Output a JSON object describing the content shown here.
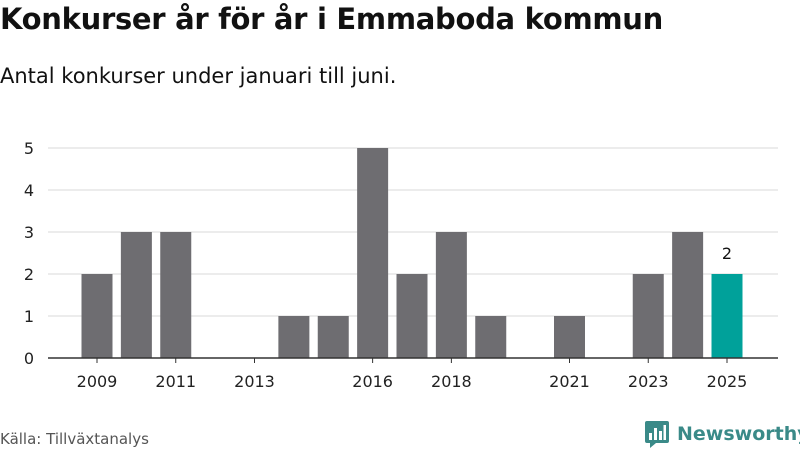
{
  "title": "Konkurser år för år i Emmaboda kommun",
  "subtitle": "Antal konkurser under januari till juni.",
  "source": "Källa: Tillväxtanalys",
  "brand": {
    "name": "Newsworthy",
    "icon": "newsworthy-logo-icon"
  },
  "colors": {
    "bar": "#6e6d71",
    "highlight": "#00a19a",
    "grid": "#d9d9d9",
    "axis": "#333333"
  },
  "chart_data": {
    "type": "bar",
    "title": "",
    "xlabel": "",
    "ylabel": "",
    "x": [
      2009,
      2010,
      2011,
      2012,
      2013,
      2014,
      2015,
      2016,
      2017,
      2018,
      2019,
      2020,
      2021,
      2022,
      2023,
      2024,
      2025
    ],
    "values": [
      2,
      3,
      3,
      0,
      0,
      1,
      1,
      5,
      2,
      3,
      1,
      0,
      1,
      0,
      2,
      3,
      2
    ],
    "xtick_labels": [
      "2009",
      "2011",
      "2013",
      "2016",
      "2018",
      "2021",
      "2023",
      "2025"
    ],
    "yticks": [
      0,
      1,
      2,
      3,
      4,
      5
    ],
    "ylim": [
      0,
      5
    ],
    "grid": true,
    "highlight": {
      "x": 2025,
      "label": "2"
    }
  }
}
